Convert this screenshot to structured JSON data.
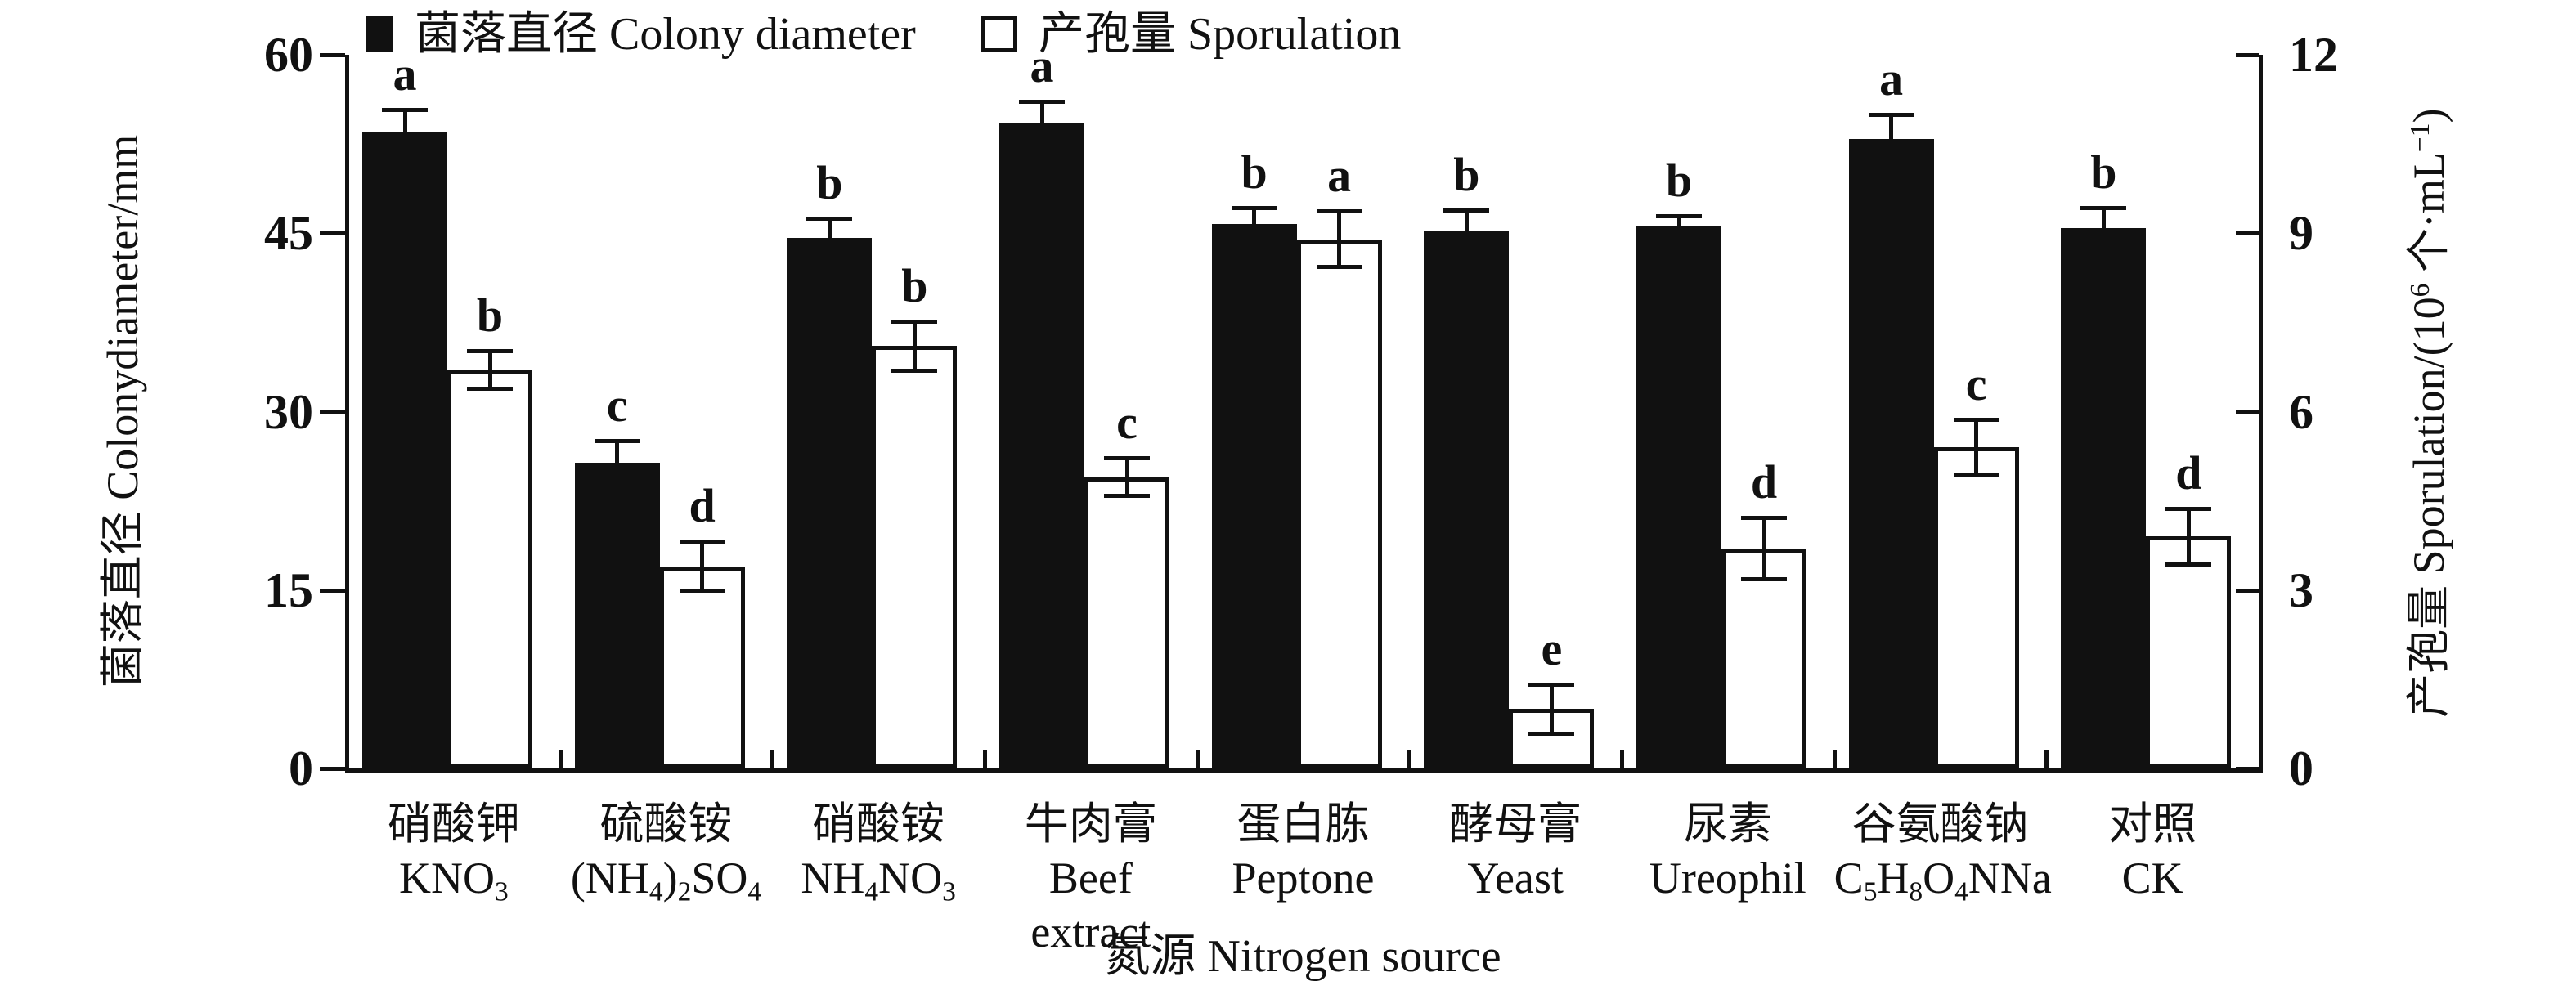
{
  "chart_data": {
    "type": "bar",
    "title": "",
    "xlabel": "氮源 Nitrogen source",
    "left_axis": {
      "label": "菌落直径 Colonydiameter/mm",
      "title_segments": [
        {
          "t": "菌落直径 Colonydiameter/mm"
        }
      ],
      "ticks": [
        0,
        15,
        30,
        45,
        60
      ],
      "ylim": [
        0,
        60
      ],
      "max": 60
    },
    "right_axis": {
      "label": "产孢量 Sporulation/(10⁶ 个·mL⁻¹)",
      "title_segments": [
        {
          "t": "产孢量 Sporulation/(10"
        },
        {
          "t": "6",
          "sup": true
        },
        {
          "t": " 个·mL"
        },
        {
          "t": "−1",
          "sup": true
        },
        {
          "t": ")"
        }
      ],
      "ticks": [
        0,
        3,
        6,
        9,
        12
      ],
      "ylim": [
        0,
        12
      ],
      "max": 12
    },
    "legend": [
      {
        "label": "菌落直径 Colony diameter",
        "style": "filled"
      },
      {
        "label": "产孢量 Sporulation",
        "style": "open"
      }
    ],
    "categories": [
      {
        "zh": "硝酸钾",
        "formula": [
          {
            "t": "KNO"
          },
          {
            "t": "3",
            "sub": true
          }
        ]
      },
      {
        "zh": "硫酸铵",
        "formula": [
          {
            "t": "(NH"
          },
          {
            "t": "4",
            "sub": true
          },
          {
            "t": ")"
          },
          {
            "t": "2",
            "sub": true
          },
          {
            "t": "SO"
          },
          {
            "t": "4",
            "sub": true
          }
        ]
      },
      {
        "zh": "硝酸铵",
        "formula": [
          {
            "t": "NH"
          },
          {
            "t": "4",
            "sub": true
          },
          {
            "t": "NO"
          },
          {
            "t": "3",
            "sub": true
          }
        ]
      },
      {
        "zh": "牛肉膏",
        "formula": [
          {
            "t": "Beef extract"
          }
        ]
      },
      {
        "zh": "蛋白胨",
        "formula": [
          {
            "t": "Peptone"
          }
        ]
      },
      {
        "zh": "酵母膏",
        "formula": [
          {
            "t": "Yeast"
          }
        ]
      },
      {
        "zh": "尿素",
        "formula": [
          {
            "t": "Ureophil"
          }
        ]
      },
      {
        "zh": "谷氨酸钠",
        "formula": [
          {
            "t": "C"
          },
          {
            "t": "5",
            "sub": true
          },
          {
            "t": "H"
          },
          {
            "t": "8",
            "sub": true
          },
          {
            "t": "O"
          },
          {
            "t": "4",
            "sub": true
          },
          {
            "t": "NNa"
          }
        ]
      },
      {
        "zh": "对照",
        "formula": [
          {
            "t": "CK"
          }
        ]
      }
    ],
    "series": [
      {
        "name": "菌落直径 Colony diameter",
        "axis": "left",
        "style": "filled",
        "unit": "mm",
        "values": [
          53.5,
          25.7,
          44.6,
          54.2,
          45.8,
          45.2,
          45.6,
          52.9,
          45.4
        ],
        "errors": [
          2.0,
          2.0,
          1.8,
          2.0,
          1.5,
          1.9,
          1.0,
          2.2,
          1.9
        ],
        "letters": [
          "a",
          "c",
          "b",
          "a",
          "b",
          "b",
          "b",
          "a",
          "b"
        ]
      },
      {
        "name": "产孢量 Sporulation",
        "axis": "right",
        "style": "open",
        "unit": "10⁶ 个·mL⁻¹",
        "values": [
          6.7,
          3.4,
          7.1,
          4.9,
          8.9,
          1.0,
          3.7,
          5.4,
          3.9
        ],
        "errors": [
          0.35,
          0.45,
          0.45,
          0.35,
          0.5,
          0.45,
          0.55,
          0.5,
          0.5
        ],
        "letters": [
          "b",
          "d",
          "b",
          "c",
          "a",
          "e",
          "d",
          "c",
          "d"
        ]
      }
    ],
    "layout_hints": {
      "grid": false,
      "legend_position": "top",
      "bar_groups": 9,
      "bars_per_group": 2
    },
    "colors": {
      "ink": "#111111",
      "background": "#ffffff"
    }
  }
}
